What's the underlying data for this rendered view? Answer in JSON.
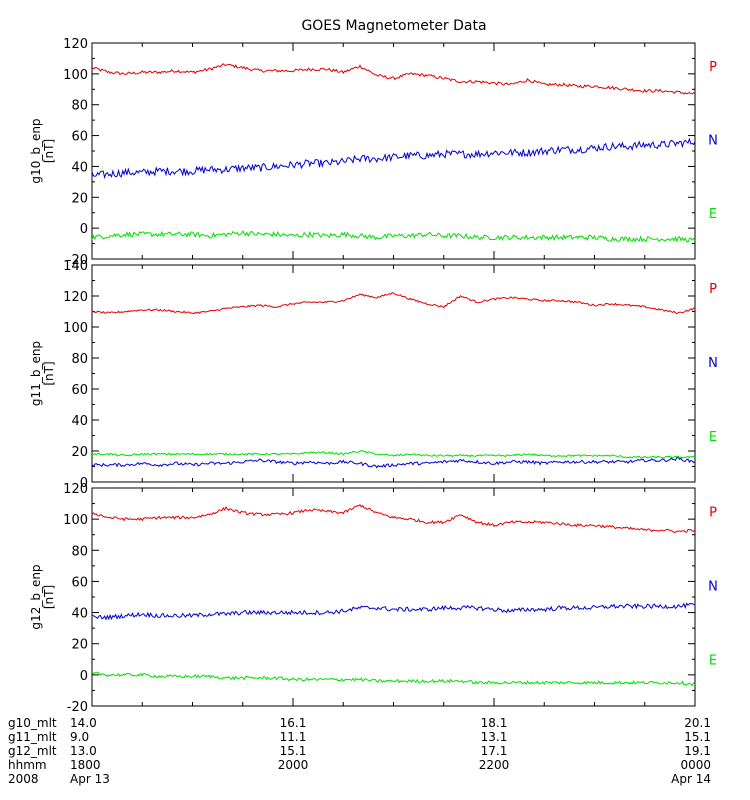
{
  "title": "GOES Magnetometer Data",
  "colors": {
    "P": "#e00000",
    "N": "#0000d0",
    "E": "#00e000",
    "axis": "#000000"
  },
  "chart_data": [
    {
      "type": "line",
      "ylabel": "g10_b_enp",
      "unit": "[nT]",
      "ylim": [
        -20,
        120
      ],
      "yticks": [
        -20,
        0,
        20,
        40,
        60,
        80,
        100,
        120
      ],
      "grid": false,
      "legend_position": "right",
      "x": [
        0,
        10,
        20,
        30,
        40,
        50,
        60,
        70,
        80,
        90,
        100,
        110,
        120,
        130,
        140,
        150,
        160,
        170,
        180,
        190,
        200,
        210,
        220,
        230,
        240,
        250,
        260,
        270,
        280,
        290,
        300,
        310,
        320,
        330,
        340,
        350,
        360
      ],
      "series": [
        {
          "name": "P",
          "color_key": "P",
          "noise": 1.0,
          "values": [
            104,
            101,
            100,
            101,
            101,
            102,
            101,
            103,
            106,
            104,
            102,
            102,
            102,
            103,
            103,
            101,
            105,
            99,
            97,
            100,
            99,
            97,
            95,
            95,
            94,
            93,
            96,
            93,
            93,
            92,
            92,
            91,
            90,
            89,
            89,
            88,
            87
          ]
        },
        {
          "name": "N",
          "color_key": "N",
          "noise": 2.5,
          "values": [
            34,
            35,
            36,
            36,
            37,
            37,
            37,
            38,
            38,
            39,
            39,
            40,
            41,
            42,
            42,
            43,
            45,
            45,
            46,
            47,
            47,
            48,
            48,
            48,
            49,
            49,
            49,
            50,
            51,
            51,
            52,
            53,
            53,
            54,
            54,
            55,
            56
          ]
        },
        {
          "name": "E",
          "color_key": "E",
          "noise": 1.6,
          "values": [
            -6,
            -5,
            -4,
            -4,
            -4,
            -4,
            -4,
            -5,
            -4,
            -3,
            -4,
            -4,
            -5,
            -4,
            -5,
            -4,
            -5,
            -6,
            -5,
            -5,
            -4,
            -5,
            -5,
            -6,
            -6,
            -6,
            -6,
            -6,
            -6,
            -6,
            -6,
            -7,
            -7,
            -7,
            -7,
            -7,
            -8
          ]
        }
      ]
    },
    {
      "type": "line",
      "ylabel": "g11_b_enp",
      "unit": "[nT]",
      "ylim": [
        0,
        140
      ],
      "yticks": [
        0,
        20,
        40,
        60,
        80,
        100,
        120,
        140
      ],
      "grid": false,
      "legend_position": "right",
      "x": [
        0,
        10,
        20,
        30,
        40,
        50,
        60,
        70,
        80,
        90,
        100,
        110,
        120,
        130,
        140,
        150,
        160,
        170,
        180,
        190,
        200,
        210,
        220,
        230,
        240,
        250,
        260,
        270,
        280,
        290,
        300,
        310,
        320,
        330,
        340,
        350,
        360
      ],
      "series": [
        {
          "name": "P",
          "color_key": "P",
          "noise": 0.6,
          "values": [
            110,
            109,
            110,
            111,
            111,
            110,
            109,
            110,
            112,
            113,
            114,
            113,
            115,
            116,
            116,
            117,
            121,
            119,
            122,
            118,
            115,
            113,
            120,
            116,
            118,
            119,
            118,
            117,
            117,
            116,
            114,
            115,
            114,
            113,
            111,
            109,
            112
          ]
        },
        {
          "name": "N",
          "color_key": "N",
          "noise": 1.0,
          "values": [
            11,
            11,
            11,
            12,
            11,
            12,
            11,
            12,
            12,
            13,
            14,
            13,
            12,
            13,
            12,
            13,
            12,
            10,
            11,
            12,
            12,
            13,
            14,
            13,
            12,
            13,
            13,
            12,
            13,
            13,
            13,
            13,
            13,
            14,
            14,
            15,
            13
          ]
        },
        {
          "name": "E",
          "color_key": "E",
          "noise": 0.6,
          "values": [
            18,
            18,
            17,
            18,
            18,
            18,
            18,
            18,
            18,
            18,
            18,
            18,
            18,
            19,
            19,
            18,
            20,
            18,
            17,
            18,
            17,
            17,
            17,
            17,
            17,
            17,
            18,
            17,
            17,
            17,
            17,
            17,
            16,
            16,
            16,
            16,
            16
          ]
        }
      ]
    },
    {
      "type": "line",
      "ylabel": "g12_b_enp",
      "unit": "[nT]",
      "ylim": [
        -20,
        120
      ],
      "yticks": [
        -20,
        0,
        20,
        40,
        60,
        80,
        100,
        120
      ],
      "grid": false,
      "legend_position": "right",
      "x": [
        0,
        10,
        20,
        30,
        40,
        50,
        60,
        70,
        80,
        90,
        100,
        110,
        120,
        130,
        140,
        150,
        160,
        170,
        180,
        190,
        200,
        210,
        220,
        230,
        240,
        250,
        260,
        270,
        280,
        290,
        300,
        310,
        320,
        330,
        340,
        350,
        360
      ],
      "series": [
        {
          "name": "P",
          "color_key": "P",
          "noise": 0.9,
          "values": [
            104,
            101,
            100,
            100,
            101,
            101,
            101,
            103,
            107,
            104,
            103,
            103,
            104,
            106,
            105,
            104,
            109,
            104,
            101,
            100,
            98,
            98,
            103,
            98,
            96,
            98,
            98,
            98,
            97,
            96,
            96,
            95,
            94,
            93,
            93,
            92,
            93
          ]
        },
        {
          "name": "N",
          "color_key": "N",
          "noise": 1.4,
          "values": [
            37,
            37,
            38,
            39,
            38,
            38,
            38,
            39,
            39,
            40,
            40,
            40,
            40,
            40,
            40,
            41,
            43,
            43,
            42,
            42,
            42,
            43,
            43,
            43,
            42,
            41,
            42,
            42,
            43,
            43,
            43,
            44,
            44,
            44,
            44,
            44,
            45
          ]
        },
        {
          "name": "E",
          "color_key": "E",
          "noise": 1.0,
          "values": [
            1,
            0,
            0,
            0,
            -1,
            -1,
            -1,
            -1,
            -2,
            -2,
            -2,
            -2,
            -3,
            -3,
            -3,
            -3,
            -3,
            -4,
            -4,
            -4,
            -4,
            -4,
            -4,
            -5,
            -5,
            -5,
            -5,
            -5,
            -5,
            -5,
            -5,
            -5,
            -5,
            -5,
            -5,
            -5,
            -6
          ]
        }
      ]
    }
  ],
  "xaxis": {
    "ticks": [
      0,
      120,
      240,
      360
    ],
    "rows": [
      {
        "label": "g10_mlt",
        "values": [
          "14.0",
          "16.1",
          "18.1",
          "20.1"
        ]
      },
      {
        "label": "g11_mlt",
        "values": [
          "9.0",
          "11.1",
          "13.1",
          "15.1"
        ]
      },
      {
        "label": "g12_mlt",
        "values": [
          "13.0",
          "15.1",
          "17.1",
          "19.1"
        ]
      },
      {
        "label": "hhmm",
        "values": [
          "1800",
          "2000",
          "2200",
          "0000"
        ]
      },
      {
        "label": "2008",
        "values": [
          "Apr 13",
          "",
          "",
          "Apr 14"
        ]
      }
    ]
  }
}
